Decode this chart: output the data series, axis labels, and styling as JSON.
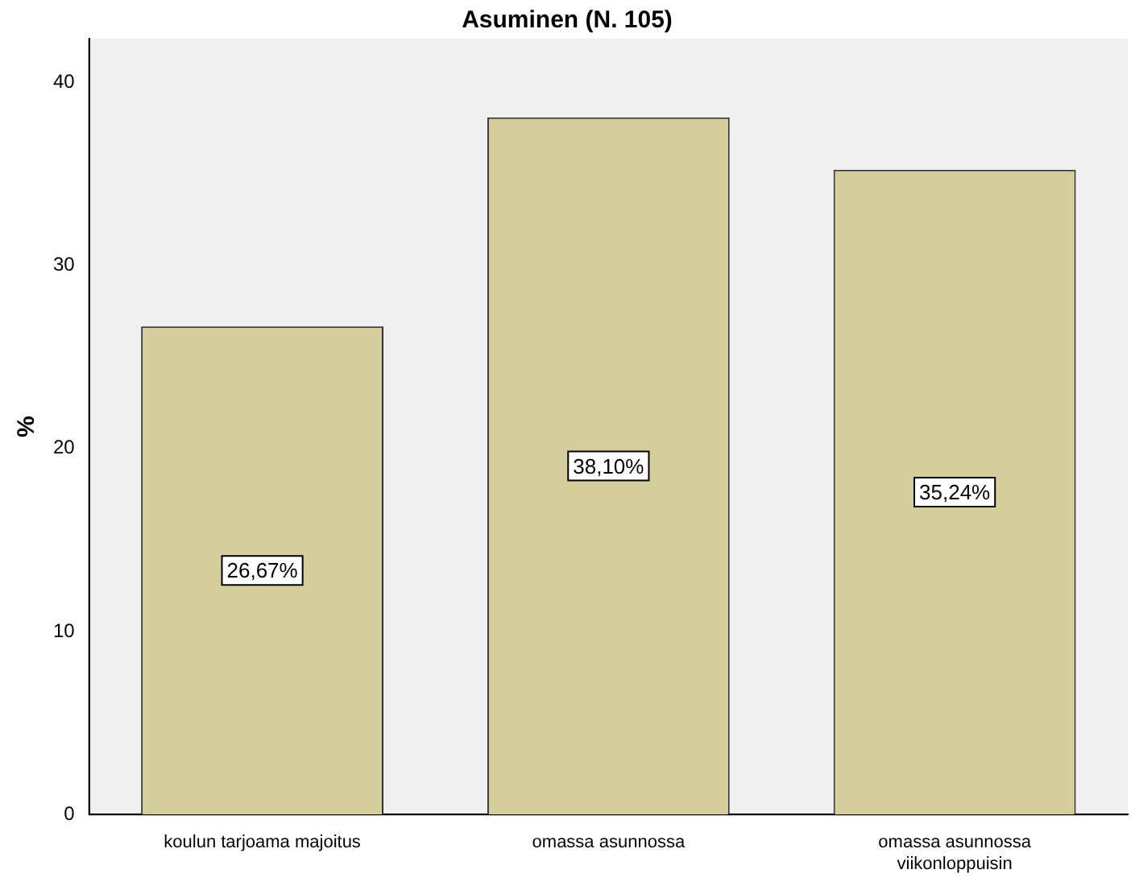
{
  "chart_data": {
    "type": "bar",
    "title": "Asuminen (N. 105)",
    "ylabel": "%",
    "categories": [
      "koulun tarjoama majoitus",
      "omassa asunnossa",
      "omassa asunnossa viikonloppuisin"
    ],
    "values": [
      26.67,
      38.1,
      35.24
    ],
    "value_labels": [
      "26,67%",
      "38,10%",
      "35,24%"
    ],
    "color": "#d3ce9a",
    "ylim": [
      0,
      42.4
    ],
    "yticks": [
      0,
      10,
      20,
      30,
      40
    ],
    "grid": false,
    "legend": false
  }
}
